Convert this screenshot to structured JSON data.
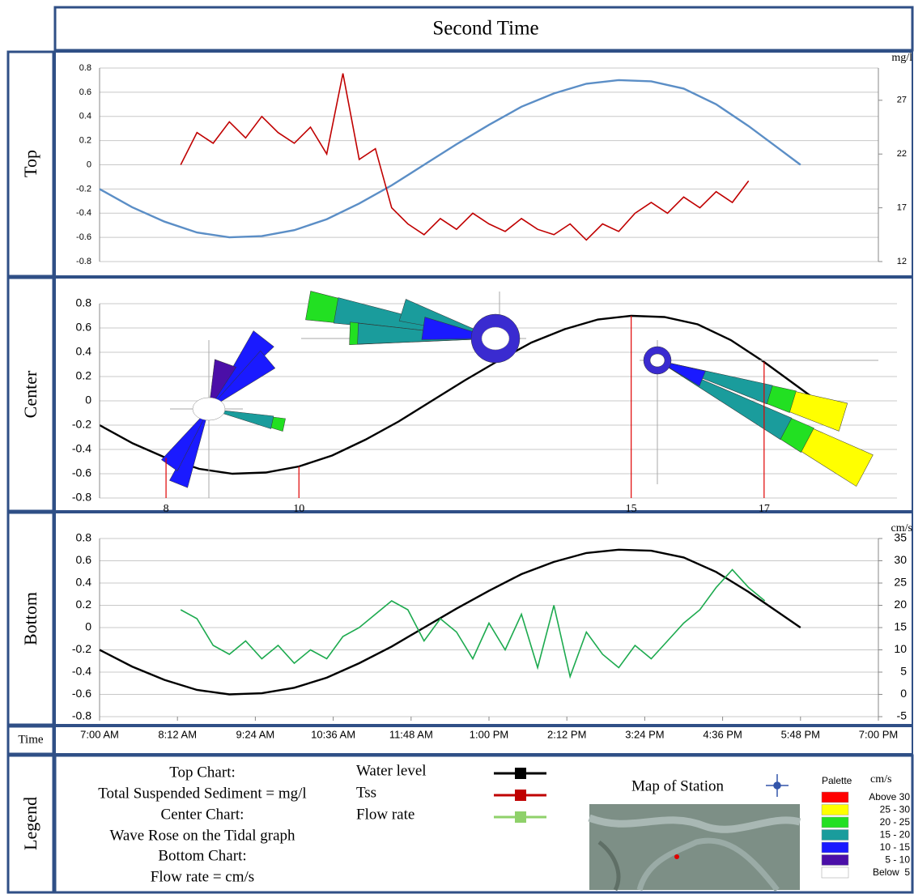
{
  "title": "Second Time",
  "row_labels": [
    "Top",
    "Center",
    "Bottom",
    "Time",
    "Legend"
  ],
  "chart_data": [
    {
      "type": "line",
      "xlim": [
        7,
        19
      ],
      "ylim": [
        -0.8,
        0.8
      ],
      "yticks": [
        -0.8,
        -0.6,
        -0.4,
        -0.2,
        0,
        0.2,
        0.4,
        0.6,
        0.8
      ],
      "y2lim": [
        12,
        30
      ],
      "y2ticks": [
        12,
        17,
        22,
        27
      ],
      "y2label": "mg/l",
      "grid": true,
      "series": [
        {
          "color": "#5b8ec6",
          "x": [
            7,
            7.5,
            8,
            8.5,
            9,
            9.5,
            10,
            10.5,
            11,
            11.5,
            12,
            12.5,
            13,
            13.5,
            14,
            14.5,
            15,
            15.5,
            16,
            16.5,
            17,
            17.5,
            17.8
          ],
          "values": [
            -0.2,
            -0.35,
            -0.47,
            -0.56,
            -0.6,
            -0.59,
            -0.54,
            -0.45,
            -0.32,
            -0.17,
            0,
            0.17,
            0.33,
            0.48,
            0.59,
            0.67,
            0.7,
            0.69,
            0.63,
            0.5,
            0.32,
            0.12,
            0
          ]
        },
        {
          "color": "#c00000",
          "axis": "y2",
          "x": [
            8.25,
            8.5,
            8.75,
            9,
            9.25,
            9.5,
            9.75,
            10,
            10.25,
            10.5,
            10.75,
            11,
            11.25,
            11.5,
            11.75,
            12,
            12.25,
            12.5,
            12.75,
            13,
            13.25,
            13.5,
            13.75,
            14,
            14.25,
            14.5,
            14.75,
            15,
            15.25,
            15.5,
            15.75,
            16,
            16.25,
            16.5,
            16.75,
            17
          ],
          "values": [
            21,
            24,
            23,
            25,
            23.5,
            25.5,
            24,
            23,
            24.5,
            22,
            29.5,
            21.5,
            22.5,
            17,
            15.5,
            14.5,
            16,
            15,
            16.5,
            15.5,
            14.8,
            16,
            15,
            14.5,
            15.5,
            14,
            15.5,
            14.8,
            16.5,
            17.5,
            16.5,
            18,
            17,
            18.5,
            17.5,
            19.5
          ]
        }
      ]
    },
    {
      "type": "line",
      "xlim": [
        7,
        19
      ],
      "ylim": [
        -0.8,
        0.8
      ],
      "yticks": [
        -0.8,
        -0.6,
        -0.4,
        -0.2,
        0,
        0.2,
        0.4,
        0.6,
        0.8
      ],
      "xticks": [
        8,
        10,
        15,
        17
      ],
      "tick_line_color": "#e00000",
      "grid": true,
      "series": [
        {
          "color": "#000000",
          "x": [
            7,
            7.5,
            8,
            8.5,
            9,
            9.5,
            10,
            10.5,
            11,
            11.5,
            12,
            12.5,
            13,
            13.5,
            14,
            14.5,
            15,
            15.5,
            16,
            16.5,
            17,
            17.5,
            17.8
          ],
          "values": [
            -0.2,
            -0.35,
            -0.47,
            -0.56,
            -0.6,
            -0.59,
            -0.54,
            -0.45,
            -0.32,
            -0.17,
            0,
            0.17,
            0.33,
            0.48,
            0.59,
            0.67,
            0.7,
            0.69,
            0.63,
            0.5,
            0.32,
            0.12,
            0
          ]
        }
      ]
    },
    {
      "type": "line",
      "xlim": [
        7,
        19
      ],
      "ylim": [
        -0.8,
        0.8
      ],
      "yticks": [
        -0.8,
        -0.6,
        -0.4,
        -0.2,
        0,
        0.2,
        0.4,
        0.6,
        0.8
      ],
      "y2lim": [
        -5,
        35
      ],
      "y2ticks": [
        -5,
        0,
        5,
        10,
        15,
        20,
        25,
        30,
        35
      ],
      "y2label": "cm/s",
      "grid": true,
      "xticks": [
        {
          "value": 7,
          "label": "7:00 AM"
        },
        {
          "value": 8.2,
          "label": "8:12 AM"
        },
        {
          "value": 9.4,
          "label": "9:24 AM"
        },
        {
          "value": 10.6,
          "label": "10:36 AM"
        },
        {
          "value": 11.8,
          "label": "11:48 AM"
        },
        {
          "value": 13,
          "label": "1:00 PM"
        },
        {
          "value": 14.2,
          "label": "2:12 PM"
        },
        {
          "value": 15.4,
          "label": "3:24 PM"
        },
        {
          "value": 16.6,
          "label": "4:36 PM"
        },
        {
          "value": 17.8,
          "label": "5:48 PM"
        },
        {
          "value": 19,
          "label": "7:00 PM"
        }
      ],
      "series": [
        {
          "color": "#000000",
          "x": [
            7,
            7.5,
            8,
            8.5,
            9,
            9.5,
            10,
            10.5,
            11,
            11.5,
            12,
            12.5,
            13,
            13.5,
            14,
            14.5,
            15,
            15.5,
            16,
            16.5,
            17,
            17.5,
            17.8
          ],
          "values": [
            -0.2,
            -0.35,
            -0.47,
            -0.56,
            -0.6,
            -0.59,
            -0.54,
            -0.45,
            -0.32,
            -0.17,
            0,
            0.17,
            0.33,
            0.48,
            0.59,
            0.67,
            0.7,
            0.69,
            0.63,
            0.5,
            0.32,
            0.12,
            0
          ]
        },
        {
          "color": "#1daa4f",
          "axis": "y2",
          "x": [
            8.25,
            8.5,
            8.75,
            9,
            9.25,
            9.5,
            9.75,
            10,
            10.25,
            10.5,
            10.75,
            11,
            11.25,
            11.5,
            11.75,
            12,
            12.25,
            12.5,
            12.75,
            13,
            13.25,
            13.5,
            13.75,
            14,
            14.25,
            14.5,
            14.75,
            15,
            15.25,
            15.5,
            15.75,
            16,
            16.25,
            16.5,
            16.75,
            17,
            17.25
          ],
          "values": [
            19,
            17,
            11,
            9,
            12,
            8,
            11,
            7,
            10,
            8,
            13,
            15,
            18,
            21,
            19,
            12,
            17,
            14,
            8,
            16,
            10,
            18,
            6,
            20,
            4,
            14,
            9,
            6,
            11,
            8,
            12,
            16,
            19,
            24,
            28,
            24,
            21
          ]
        }
      ]
    }
  ],
  "legend": {
    "notes": [
      "Top Chart:",
      "Total Suspended Sediment = mg/l",
      "Center Chart:",
      "Wave Rose on the Tidal graph",
      "Bottom Chart:",
      "Flow rate = cm/s"
    ],
    "items": [
      {
        "name": "Water level",
        "color": "#000000"
      },
      {
        "name": "Tss",
        "color": "#c00000"
      },
      {
        "name": "Flow rate",
        "color": "#8fd16a"
      }
    ],
    "map_title": "Map of Station",
    "palette": {
      "title": "Palette",
      "unit": "cm/s",
      "entries": [
        {
          "label": "Above 30",
          "color": "#ff0000"
        },
        {
          "label": "25 - 30",
          "color": "#ffff00"
        },
        {
          "label": "20 - 25",
          "color": "#22e022"
        },
        {
          "label": "15 - 20",
          "color": "#1a9c9c"
        },
        {
          "label": "10 - 15",
          "color": "#1a1aff"
        },
        {
          "label": "5 - 10",
          "color": "#4b0fa8"
        },
        {
          "label": "Below  5",
          "color": "#ffffff"
        }
      ]
    }
  }
}
